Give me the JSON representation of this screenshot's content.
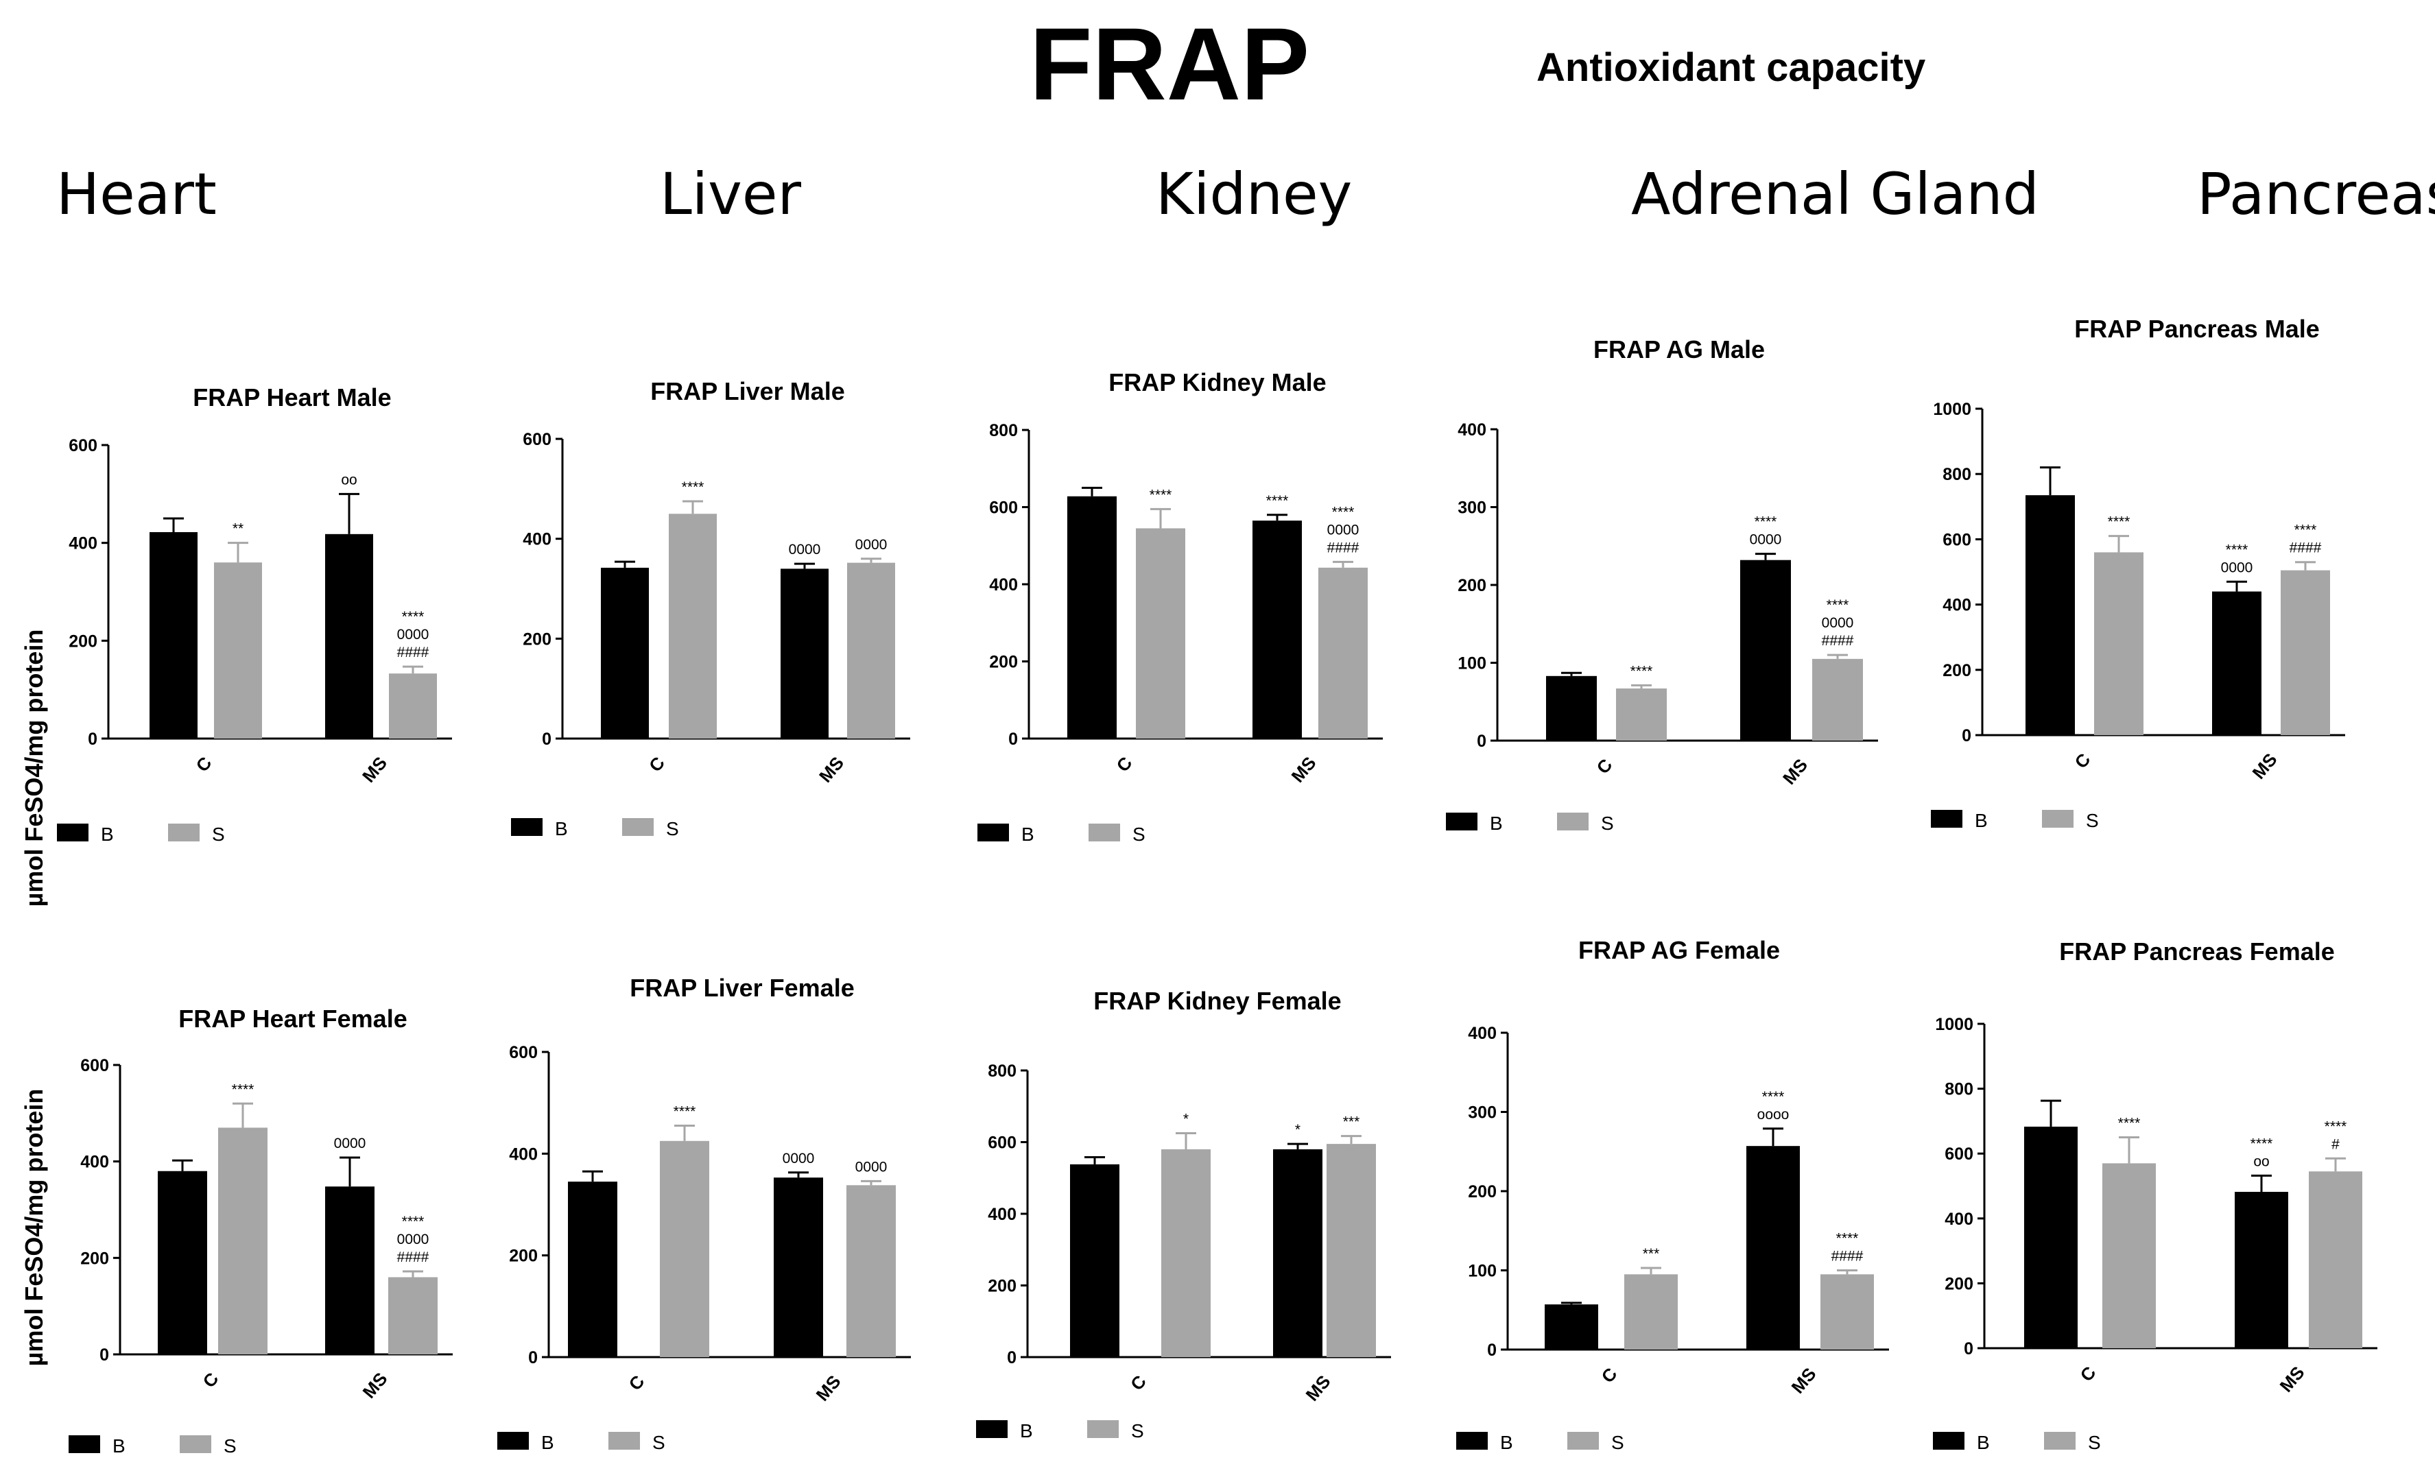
{
  "header": {
    "title": "FRAP",
    "subtitle": "Antioxidant capacity"
  },
  "organs": [
    "Heart",
    "Liver",
    "Kidney",
    "Adrenal Gland",
    "Pancreas"
  ],
  "y_label": "µmol FeSO4/mg protein",
  "colors": {
    "B": "#000000",
    "S": "#a6a6a6",
    "axis": "#000000"
  },
  "chart_data": [
    {
      "type": "bar",
      "title": "FRAP Heart Male",
      "categories": [
        "C",
        "MS"
      ],
      "ylim": [
        0,
        600
      ],
      "yticks": [
        0,
        200,
        400,
        600
      ],
      "series": [
        {
          "name": "B",
          "values": [
            422,
            418
          ],
          "errors": [
            28,
            82
          ],
          "annotations": [
            [],
            [
              "oo"
            ]
          ]
        },
        {
          "name": "S",
          "values": [
            360,
            133
          ],
          "errors": [
            40,
            14
          ],
          "annotations": [
            [
              "**"
            ],
            [
              "****",
              "0000",
              "####"
            ]
          ]
        }
      ],
      "legend": [
        "B",
        "S"
      ]
    },
    {
      "type": "bar",
      "title": "FRAP Liver Male",
      "categories": [
        "C",
        "MS"
      ],
      "ylim": [
        0,
        600
      ],
      "yticks": [
        0,
        200,
        400,
        600
      ],
      "series": [
        {
          "name": "B",
          "values": [
            342,
            340
          ],
          "errors": [
            12,
            10
          ],
          "annotations": [
            [],
            [
              "0000"
            ]
          ]
        },
        {
          "name": "S",
          "values": [
            450,
            352
          ],
          "errors": [
            25,
            8
          ],
          "annotations": [
            [
              "****"
            ],
            [
              "0000"
            ]
          ]
        }
      ],
      "legend": [
        "B",
        "S"
      ]
    },
    {
      "type": "bar",
      "title": "FRAP Kidney Male",
      "categories": [
        "C",
        "MS"
      ],
      "ylim": [
        0,
        800
      ],
      "yticks": [
        0,
        200,
        400,
        600,
        800
      ],
      "series": [
        {
          "name": "B",
          "values": [
            628,
            565
          ],
          "errors": [
            22,
            15
          ],
          "annotations": [
            [],
            [
              "****"
            ]
          ]
        },
        {
          "name": "S",
          "values": [
            545,
            443
          ],
          "errors": [
            50,
            15
          ],
          "annotations": [
            [
              "****"
            ],
            [
              "****",
              "0000",
              "####"
            ]
          ]
        }
      ],
      "legend": [
        "B",
        "S"
      ]
    },
    {
      "type": "bar",
      "title": "FRAP AG  Male",
      "categories": [
        "C",
        "MS"
      ],
      "ylim": [
        0,
        400
      ],
      "yticks": [
        0,
        100,
        200,
        300,
        400
      ],
      "series": [
        {
          "name": "B",
          "values": [
            83,
            232
          ],
          "errors": [
            4,
            8
          ],
          "annotations": [
            [],
            [
              "****",
              "0000"
            ]
          ]
        },
        {
          "name": "S",
          "values": [
            67,
            105
          ],
          "errors": [
            4,
            5
          ],
          "annotations": [
            [
              "****"
            ],
            [
              "****",
              "0000",
              "####"
            ]
          ]
        }
      ],
      "legend": [
        "B",
        "S"
      ]
    },
    {
      "type": "bar",
      "title": "FRAP Pancreas Male",
      "categories": [
        "C",
        "MS"
      ],
      "ylim": [
        0,
        1000
      ],
      "yticks": [
        0,
        200,
        400,
        600,
        800,
        1000
      ],
      "series": [
        {
          "name": "B",
          "values": [
            735,
            440
          ],
          "errors": [
            85,
            30
          ],
          "annotations": [
            [],
            [
              "****",
              "0000"
            ]
          ]
        },
        {
          "name": "S",
          "values": [
            560,
            505
          ],
          "errors": [
            50,
            25
          ],
          "annotations": [
            [
              "****"
            ],
            [
              "****",
              "####"
            ]
          ]
        }
      ],
      "legend": [
        "B",
        "S"
      ]
    },
    {
      "type": "bar",
      "title": "FRAP Heart Female",
      "categories": [
        "C",
        "MS"
      ],
      "ylim": [
        0,
        600
      ],
      "yticks": [
        0,
        200,
        400,
        600
      ],
      "series": [
        {
          "name": "B",
          "values": [
            380,
            348
          ],
          "errors": [
            22,
            60
          ],
          "annotations": [
            [],
            [
              "0000"
            ]
          ]
        },
        {
          "name": "S",
          "values": [
            470,
            160
          ],
          "errors": [
            50,
            12
          ],
          "annotations": [
            [
              "****"
            ],
            [
              "****",
              "0000",
              "####"
            ]
          ]
        }
      ],
      "legend": [
        "B",
        "S"
      ]
    },
    {
      "type": "bar",
      "title": "FRAP Liver Female",
      "categories": [
        "C",
        "MS"
      ],
      "ylim": [
        0,
        600
      ],
      "yticks": [
        0,
        200,
        400,
        600
      ],
      "series": [
        {
          "name": "B",
          "values": [
            345,
            353
          ],
          "errors": [
            20,
            10
          ],
          "annotations": [
            [],
            [
              "0000"
            ]
          ]
        },
        {
          "name": "S",
          "values": [
            425,
            338
          ],
          "errors": [
            30,
            8
          ],
          "annotations": [
            [
              "****"
            ],
            [
              "0000"
            ]
          ]
        }
      ],
      "legend": [
        "B",
        "S"
      ]
    },
    {
      "type": "bar",
      "title": "FRAP Kidney Female",
      "categories": [
        "C",
        "MS"
      ],
      "ylim": [
        0,
        800
      ],
      "yticks": [
        0,
        200,
        400,
        600,
        800
      ],
      "series": [
        {
          "name": "B",
          "values": [
            538,
            580
          ],
          "errors": [
            20,
            15
          ],
          "annotations": [
            [],
            [
              "*"
            ]
          ]
        },
        {
          "name": "S",
          "values": [
            580,
            595
          ],
          "errors": [
            45,
            22
          ],
          "annotations": [
            [
              "*"
            ],
            [
              "***"
            ]
          ]
        }
      ],
      "legend": [
        "B",
        "S"
      ]
    },
    {
      "type": "bar",
      "title": "FRAP AG Female",
      "categories": [
        "C",
        "MS"
      ],
      "ylim": [
        0,
        400
      ],
      "yticks": [
        0,
        100,
        200,
        300,
        400
      ],
      "series": [
        {
          "name": "B",
          "values": [
            57,
            257
          ],
          "errors": [
            2,
            22
          ],
          "annotations": [
            [],
            [
              "****",
              "oooo"
            ]
          ]
        },
        {
          "name": "S",
          "values": [
            95,
            95
          ],
          "errors": [
            8,
            5
          ],
          "annotations": [
            [
              "***"
            ],
            [
              "****",
              "####"
            ]
          ]
        }
      ],
      "legend": [
        "B",
        "S"
      ]
    },
    {
      "type": "bar",
      "title": "FRAP Pancreas Female",
      "categories": [
        "C",
        "MS"
      ],
      "ylim": [
        0,
        1000
      ],
      "yticks": [
        0,
        200,
        400,
        600,
        800,
        1000
      ],
      "series": [
        {
          "name": "B",
          "values": [
            683,
            482
          ],
          "errors": [
            80,
            50
          ],
          "annotations": [
            [],
            [
              "****",
              "oo"
            ]
          ]
        },
        {
          "name": "S",
          "values": [
            570,
            545
          ],
          "errors": [
            80,
            40
          ],
          "annotations": [
            [
              "****"
            ],
            [
              "****",
              "#"
            ]
          ]
        }
      ],
      "legend": [
        "B",
        "S"
      ]
    }
  ]
}
